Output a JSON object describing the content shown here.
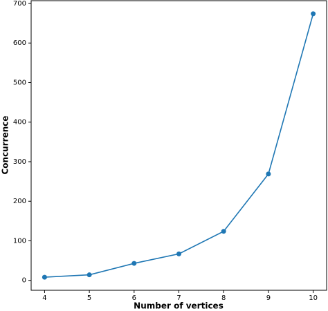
{
  "chart_data": {
    "type": "line",
    "x_label": "Number of vertices",
    "y_label": "Concurrence",
    "x": [
      4,
      5,
      6,
      7,
      8,
      9,
      10
    ],
    "series": [
      {
        "color": "#1f77b4",
        "values": [
          8,
          14,
          43,
          67,
          124,
          269,
          674
        ]
      }
    ],
    "xlim": [
      3.7,
      10.3
    ],
    "xticks": [
      4,
      5,
      6,
      7,
      8,
      9,
      10
    ],
    "ylim": [
      -25,
      707
    ],
    "yticks": [
      0,
      100,
      200,
      300,
      400,
      500,
      600,
      700
    ],
    "grid": false,
    "markers": true
  }
}
